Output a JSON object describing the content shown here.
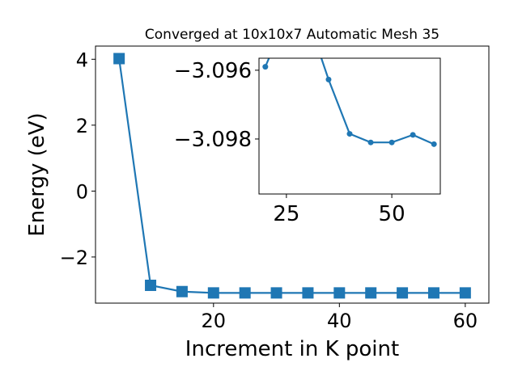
{
  "chart_data": [
    {
      "type": "line",
      "title": "Converged at 10x10x7 Automatic Mesh 35",
      "xlabel": "Increment in K point",
      "ylabel": "Energy (eV)",
      "xlim": [
        1.25,
        63.75
      ],
      "ylim": [
        -3.4,
        4.4
      ],
      "xticks": [
        "20",
        "40",
        "60"
      ],
      "yticks": [
        "4",
        "2",
        "0",
        "−2"
      ],
      "marker": "square",
      "color": "#1f77b4",
      "grid": false,
      "series": [
        {
          "x": [
            5,
            10,
            15,
            20,
            25,
            30,
            35,
            40,
            45,
            50,
            55,
            60
          ],
          "y": [
            4.02,
            -2.86,
            -3.05,
            -3.09,
            -3.09,
            -3.09,
            -3.09,
            -3.09,
            -3.09,
            -3.09,
            -3.09,
            -3.09
          ]
        }
      ]
    },
    {
      "type": "line",
      "inset": true,
      "xlim": [
        18.5,
        61.5
      ],
      "ylim": [
        -3.0996,
        -3.09565
      ],
      "xticks": [
        "25",
        "50"
      ],
      "yticks": [
        "−3.098",
        "−3.096"
      ],
      "marker": "circle",
      "color": "#1f77b4",
      "grid": false,
      "series": [
        {
          "x": [
            20,
            25,
            30,
            35,
            40,
            45,
            50,
            55,
            60
          ],
          "y": [
            -3.0959,
            -3.09445,
            -3.09446,
            -3.09627,
            -3.09785,
            -3.0981,
            -3.0981,
            -3.09788,
            -3.09815
          ]
        }
      ]
    }
  ]
}
